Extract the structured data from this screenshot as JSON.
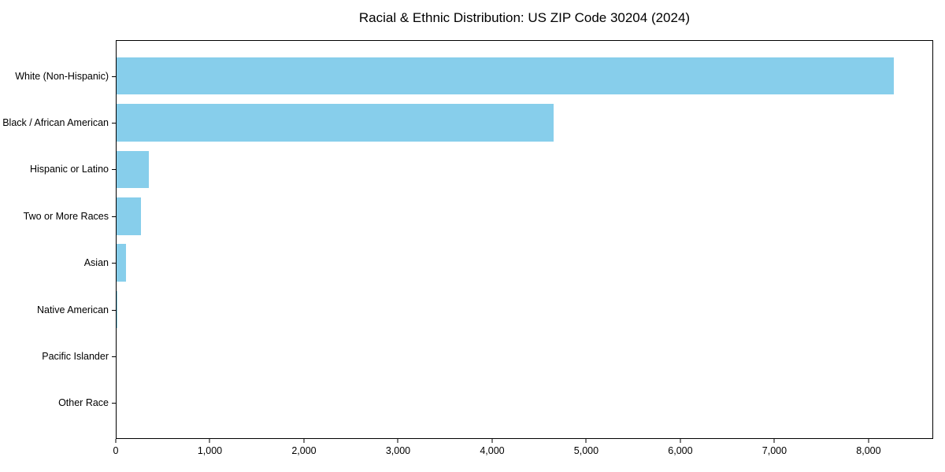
{
  "chart_data": {
    "type": "bar",
    "orientation": "horizontal",
    "title": "Racial & Ethnic Distribution: US ZIP Code 30204 (2024)",
    "categories": [
      "White (Non-Hispanic)",
      "Black / African American",
      "Hispanic or Latino",
      "Two or More Races",
      "Asian",
      "Native American",
      "Pacific Islander",
      "Other Race"
    ],
    "values": [
      8280,
      4650,
      345,
      260,
      100,
      12,
      0,
      0
    ],
    "xlabel": "",
    "ylabel": "",
    "xlim": [
      0,
      8687
    ],
    "x_ticks": [
      0,
      1000,
      2000,
      3000,
      4000,
      5000,
      6000,
      7000,
      8000
    ],
    "x_tick_labels": [
      "0",
      "1,000",
      "2,000",
      "3,000",
      "4,000",
      "5,000",
      "6,000",
      "7,000",
      "8,000"
    ],
    "bar_color": "#87CEEB",
    "spine_color": "#000000",
    "grid": false,
    "legend": false
  }
}
